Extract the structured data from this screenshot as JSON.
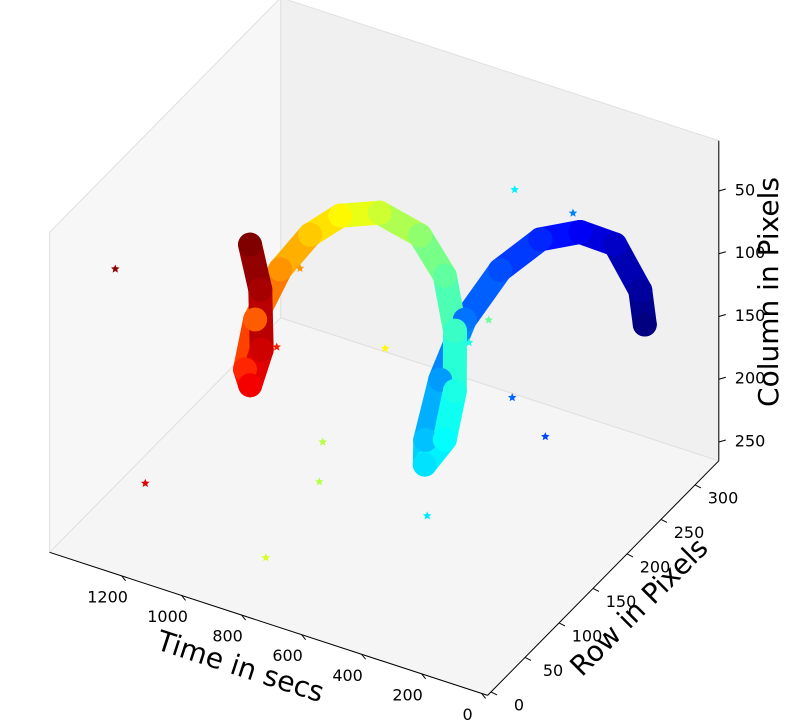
{
  "chart_data": {
    "type": "scatter3d",
    "x_label": "Time in secs",
    "y_label": "Row in Pixels",
    "z_label": "Column in Pixels",
    "xlim": [
      -20,
      1440
    ],
    "ylim": [
      -5,
      335
    ],
    "zlim": [
      10,
      265
    ],
    "z_inverted": true,
    "xticks": [
      0,
      200,
      400,
      600,
      800,
      1000,
      1200
    ],
    "yticks": [
      0,
      50,
      100,
      150,
      200,
      250,
      300
    ],
    "zticks": [
      50,
      100,
      150,
      200,
      250
    ],
    "grid": false,
    "colormap": "jet",
    "clim": [
      0,
      1300
    ],
    "series": [
      {
        "marker": "o",
        "x": [
          0,
          40,
          90,
          150,
          210,
          260,
          310,
          360,
          410,
          450,
          490,
          520,
          560,
          610,
          670,
          750,
          820,
          880,
          950,
          1020,
          1090,
          1150,
          1200,
          1250,
          1300
        ],
        "y": [
          235,
          246,
          231,
          206,
          174,
          137,
          107,
          93,
          93,
          110,
          157,
          185,
          203,
          210,
          200,
          176,
          149,
          131,
          118,
          112,
          128,
          162,
          201,
          221,
          228
        ],
        "z": [
          103,
          85,
          44,
          25,
          18,
          26,
          53,
          97,
          149,
          181,
          190,
          169,
          134,
          98,
          65,
          40,
          33,
          43,
          69,
          111,
          165,
          201,
          198,
          165,
          137
        ]
      },
      {
        "marker": "*",
        "x": [
          1280,
          1180,
          1100,
          950,
          820,
          720,
          720,
          760,
          620,
          520,
          470,
          460,
          330,
          290,
          250
        ],
        "y": [
          21,
          21,
          179,
          147,
          215,
          79,
          74,
          13,
          279,
          206,
          251,
          118,
          275,
          168,
          199
        ],
        "z": [
          41,
          204,
          176,
          84,
          175,
          167,
          196,
          226,
          172,
          142,
          41,
          227,
          62,
          147,
          192
        ]
      }
    ]
  }
}
